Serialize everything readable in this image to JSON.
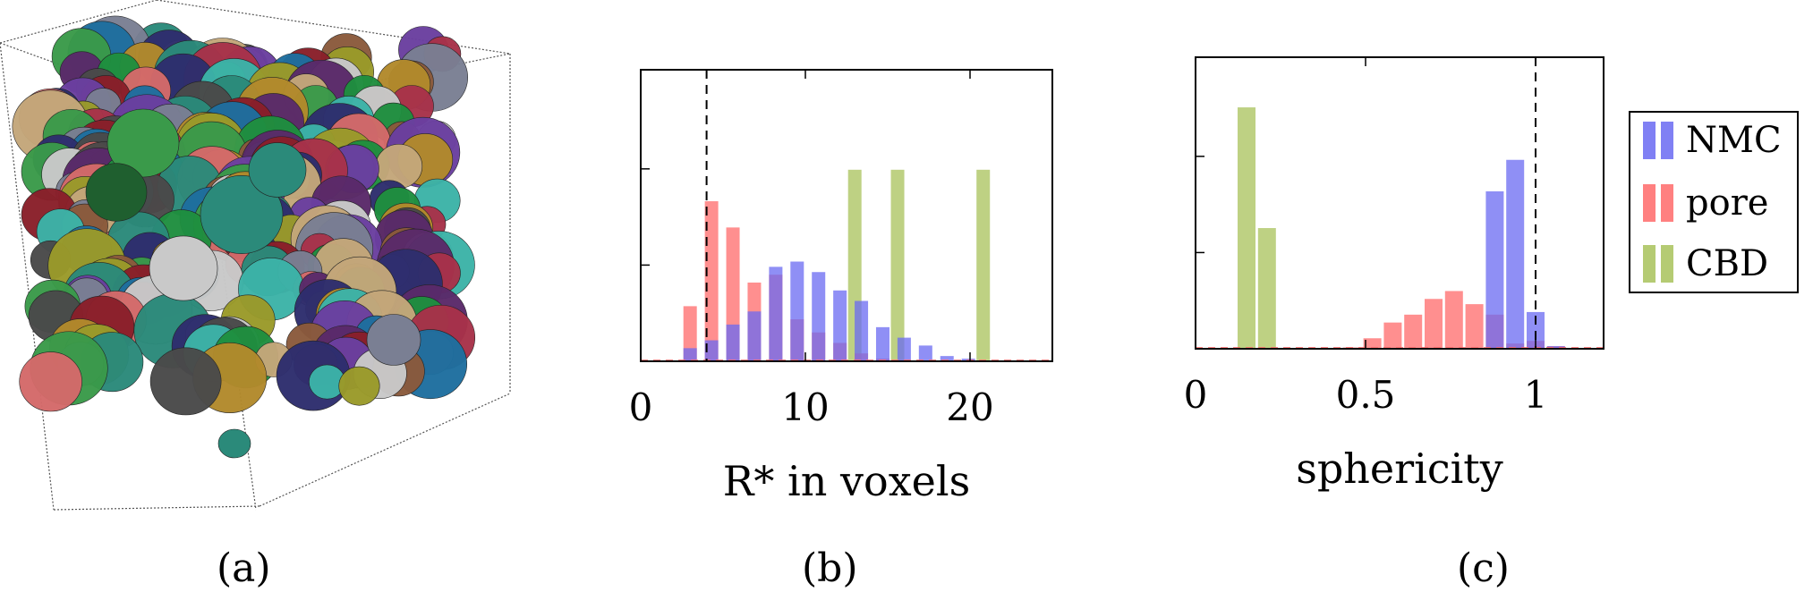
{
  "panels": {
    "a": {
      "caption": "(a)"
    },
    "b": {
      "caption": "(b)"
    },
    "c": {
      "caption": "(c)"
    }
  },
  "colors": {
    "NMC": "#6a6af2",
    "pore": "#ff6a6a",
    "CBD": "#a8c25a",
    "frame": "#000000",
    "dashed": "#000000"
  },
  "legend": {
    "items": [
      {
        "label": "NMC",
        "color": "#6a6af2"
      },
      {
        "label": "pore",
        "color": "#ff6a6a"
      },
      {
        "label": "CBD",
        "color": "#a8c25a"
      }
    ]
  },
  "volume_render": {
    "description_icon": "3d-particle-volume",
    "palette": [
      "#2b8a7a",
      "#6b3fa0",
      "#7a7f93",
      "#1e6f9f",
      "#a8324a",
      "#3a9a4a",
      "#8b5a3c",
      "#c9c9c9",
      "#2e2e6e",
      "#b28a2c",
      "#4a4a4a",
      "#d46a6a",
      "#3cb3a8",
      "#9a9a2a",
      "#5a2a6a",
      "#1f8f3f",
      "#c4a77a",
      "#8a1f2a"
    ]
  },
  "chart_data": [
    {
      "type": "bar",
      "xlabel": "R* in voxels",
      "xlim": [
        0,
        25
      ],
      "ylim": [
        0,
        1
      ],
      "xticks": [
        0,
        10,
        20
      ],
      "reference_line_x": 4,
      "series": [
        {
          "name": "NMC",
          "x": [
            3,
            4.3,
            5.6,
            6.9,
            8.2,
            9.5,
            10.8,
            12.1,
            13.4,
            14.7,
            16.0,
            17.3,
            18.6,
            19.9
          ],
          "values": [
            0.05,
            0.08,
            0.14,
            0.19,
            0.36,
            0.38,
            0.34,
            0.27,
            0.23,
            0.13,
            0.09,
            0.06,
            0.02,
            0.01
          ]
        },
        {
          "name": "pore",
          "x": [
            3,
            4.3,
            5.6,
            6.9,
            8.2,
            9.5,
            10.8,
            12.1,
            13.4,
            14.7,
            16.0
          ],
          "values": [
            0.21,
            0.61,
            0.51,
            0.3,
            0.33,
            0.16,
            0.11,
            0.07,
            0.03,
            0.01,
            0.005
          ]
        },
        {
          "name": "CBD",
          "x": [
            13.0,
            15.6,
            20.8
          ],
          "values": [
            0.73,
            0.73,
            0.73
          ]
        }
      ]
    },
    {
      "type": "bar",
      "xlabel": "sphericity",
      "xlim": [
        0,
        1.2
      ],
      "ylim": [
        0,
        1
      ],
      "xticks": [
        0,
        0.5,
        1
      ],
      "xtick_labels": [
        "0",
        "0.5",
        "1"
      ],
      "reference_line_x": 1,
      "series": [
        {
          "name": "NMC",
          "x": [
            0.88,
            0.94,
            1.0,
            1.06
          ],
          "values": [
            0.6,
            0.72,
            0.14,
            0.01
          ]
        },
        {
          "name": "pore",
          "x": [
            0.46,
            0.52,
            0.58,
            0.64,
            0.7,
            0.76,
            0.82,
            0.88,
            0.94,
            1.0,
            1.06
          ],
          "values": [
            0.005,
            0.04,
            0.1,
            0.13,
            0.19,
            0.22,
            0.17,
            0.13,
            0.02,
            0.03,
            0.01
          ]
        },
        {
          "name": "CBD",
          "x": [
            0.15,
            0.21
          ],
          "values": [
            0.92,
            0.46
          ]
        }
      ]
    }
  ]
}
